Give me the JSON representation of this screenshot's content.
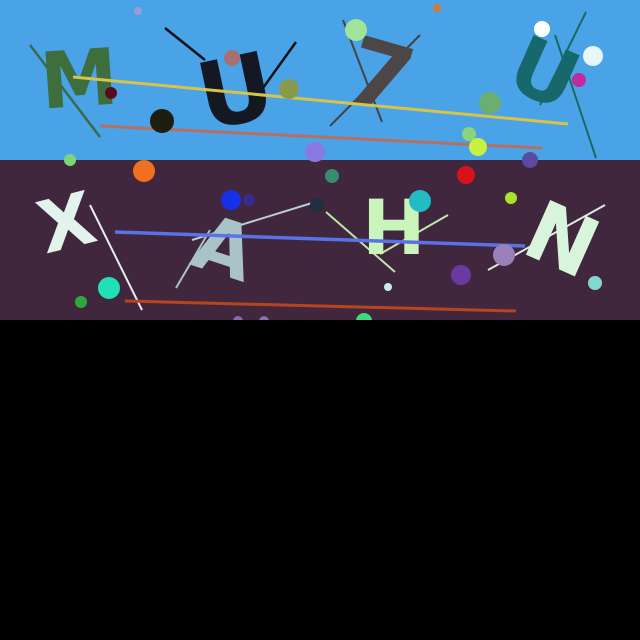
{
  "bands": {
    "top_color": "#4aa3e6",
    "middle_color": "#40273e",
    "bottom_color": "#000000"
  },
  "captcha": {
    "top_row": [
      {
        "glyph": "M",
        "color": "#3f6e3e"
      },
      {
        "glyph": "U",
        "color": "#141822"
      },
      {
        "glyph": "7",
        "color": "#4c4646"
      },
      {
        "glyph": "U",
        "color": "#16686a"
      }
    ],
    "bottom_row": [
      {
        "glyph": "X",
        "color": "#e1f3ea"
      },
      {
        "glyph": "A",
        "color": "#a9c3c8"
      },
      {
        "glyph": "H",
        "color": "#c9f5bd"
      },
      {
        "glyph": "N",
        "color": "#d9f4dc"
      }
    ]
  }
}
